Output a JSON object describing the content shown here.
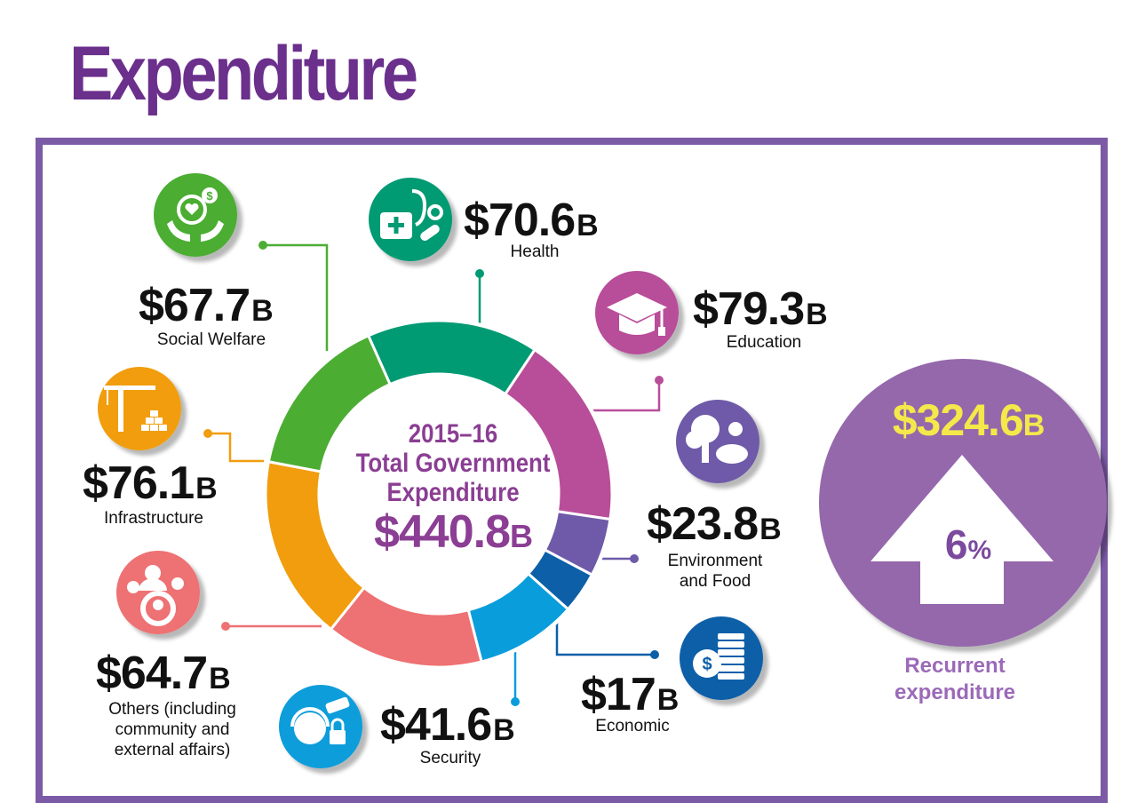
{
  "title": "Expenditure",
  "chart_data": {
    "type": "pie",
    "center": {
      "line1": "2015–16",
      "line2": "Total Government",
      "line3": "Expenditure",
      "total": "$440.8",
      "total_unit": "B"
    },
    "unit": "B",
    "segments": [
      {
        "key": "health",
        "label": "Health",
        "amount": "$70.6",
        "value": 70.6,
        "color": "#009a73",
        "icon": "health-kit-stethoscope-icon"
      },
      {
        "key": "education",
        "label": "Education",
        "amount": "$79.3",
        "value": 79.3,
        "color": "#b84e99",
        "icon": "graduation-cap-icon"
      },
      {
        "key": "environment",
        "label": "Environment\nand Food",
        "amount": "$23.8",
        "value": 23.8,
        "color": "#6e5aa8",
        "icon": "tree-pig-icon"
      },
      {
        "key": "economic",
        "label": "Economic",
        "amount": "$17",
        "value": 17,
        "color": "#0d5fa8",
        "icon": "coins-icon"
      },
      {
        "key": "security",
        "label": "Security",
        "amount": "$41.6",
        "value": 41.6,
        "color": "#0a9ddb",
        "icon": "security-guard-camera-icon"
      },
      {
        "key": "others",
        "label": "Others (including\ncommunity and\nexternal affairs)",
        "amount": "$64.7",
        "value": 64.7,
        "color": "#ee7173",
        "icon": "community-people-icon"
      },
      {
        "key": "infrastructure",
        "label": "Infrastructure",
        "amount": "$76.1",
        "value": 76.1,
        "color": "#f19d0e",
        "icon": "crane-bricks-icon"
      },
      {
        "key": "social_welfare",
        "label": "Social Welfare",
        "amount": "$67.7",
        "value": 67.7,
        "color": "#4cad33",
        "icon": "heart-hands-icon"
      }
    ]
  },
  "recurrent": {
    "amount": "$324.6",
    "unit": "B",
    "growth": "6",
    "growth_sign": "%",
    "label": "Recurrent\nexpenditure",
    "circle_color": "#9567ac",
    "amount_color": "#f4e84a"
  }
}
